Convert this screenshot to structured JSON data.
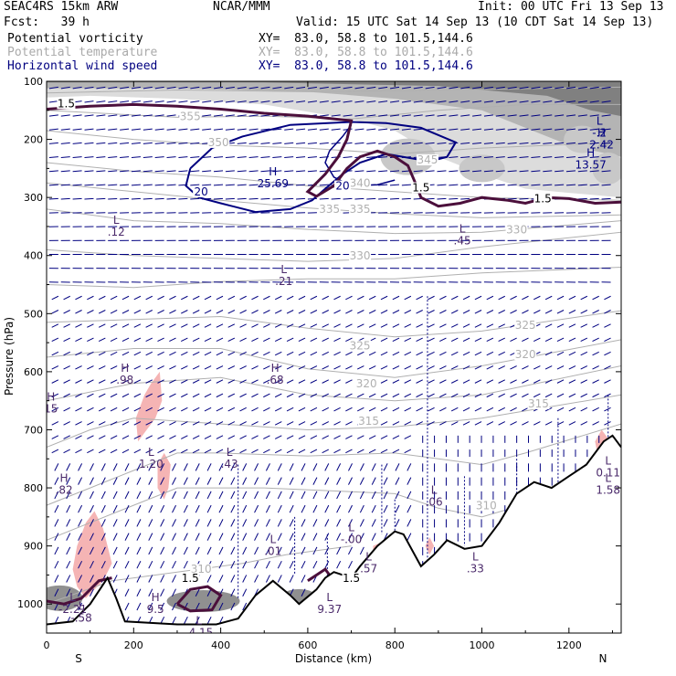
{
  "header": {
    "model": "SEAC4RS 15km ARW",
    "org": "NCAR/MMM",
    "init": "Init: 00 UTC Fri 13 Sep 13",
    "fcst": "Fcst:   39 h",
    "valid": "Valid: 15 UTC Sat 14 Sep 13 (10 CDT Sat 14 Sep 13)",
    "fields": [
      {
        "name": "Potential vorticity",
        "xy": "XY=  83.0, 58.8 to 101.5,144.6",
        "color": "#000000"
      },
      {
        "name": "Potential temperature",
        "xy": "XY=  83.0, 58.8 to 101.5,144.6",
        "color": "#aaaaaa"
      },
      {
        "name": "Horizontal wind speed",
        "xy": "XY=  83.0, 58.8 to 101.5,144.6",
        "color": "#000080"
      }
    ]
  },
  "chart_data": {
    "type": "cross-section",
    "ylabel": "Pressure (hPa)",
    "xlabel": "Distance (km)",
    "y_ticks": [
      100,
      200,
      300,
      400,
      500,
      600,
      700,
      800,
      900,
      1000
    ],
    "x_ticks": [
      0,
      200,
      400,
      600,
      800,
      1000,
      1200
    ],
    "ylim": [
      1050,
      100
    ],
    "xlim": [
      0,
      1320
    ],
    "endpoints": {
      "left": "S",
      "right": "N"
    },
    "theta_contours": [
      {
        "label": "355",
        "x": 330,
        "p": 165
      },
      {
        "label": "350",
        "x": 395,
        "p": 210
      },
      {
        "label": "345",
        "x": 875,
        "p": 240
      },
      {
        "label": "340",
        "x": 720,
        "p": 280
      },
      {
        "label": "335",
        "x": 650,
        "p": 325
      },
      {
        "label": "335",
        "x": 720,
        "p": 325
      },
      {
        "label": "330",
        "x": 1080,
        "p": 360
      },
      {
        "label": "330",
        "x": 720,
        "p": 405
      },
      {
        "label": "325",
        "x": 1100,
        "p": 525
      },
      {
        "label": "325",
        "x": 720,
        "p": 560
      },
      {
        "label": "320",
        "x": 1100,
        "p": 575
      },
      {
        "label": "320",
        "x": 735,
        "p": 625
      },
      {
        "label": "315",
        "x": 1130,
        "p": 660
      },
      {
        "label": "315",
        "x": 740,
        "p": 690
      },
      {
        "label": "310",
        "x": 1010,
        "p": 835
      },
      {
        "label": "310",
        "x": 355,
        "p": 945
      }
    ],
    "wind_contours": [
      {
        "label": "20",
        "x": 355,
        "p": 295
      },
      {
        "label": "20",
        "x": 680,
        "p": 285
      }
    ],
    "pv_contours": [
      {
        "label": "1.5",
        "x": 45,
        "p": 143
      },
      {
        "label": "1.5",
        "x": 860,
        "p": 288
      },
      {
        "label": "1.5",
        "x": 1140,
        "p": 307
      },
      {
        "label": "1.5",
        "x": 330,
        "p": 960
      },
      {
        "label": "1.5",
        "x": 700,
        "p": 960
      }
    ],
    "extrema": [
      {
        "type": "L",
        "value": "-.2",
        "x": 1270,
        "p": 175
      },
      {
        "type": "H",
        "value": "2.42",
        "x": 1275,
        "p": 195
      },
      {
        "type": "H",
        "value": "13.57",
        "x": 1250,
        "p": 230
      },
      {
        "type": "H",
        "value": "25.69",
        "x": 520,
        "p": 262
      },
      {
        "type": "L",
        "value": ".12",
        "x": 160,
        "p": 345
      },
      {
        "type": "L",
        "value": ".45",
        "x": 955,
        "p": 360
      },
      {
        "type": "L",
        "value": ".21",
        "x": 545,
        "p": 430
      },
      {
        "type": "H",
        "value": ".98",
        "x": 180,
        "p": 600
      },
      {
        "type": "H",
        "value": ".68",
        "x": 525,
        "p": 600
      },
      {
        "type": "H",
        "value": "15",
        "x": 10,
        "p": 650
      },
      {
        "type": "L",
        "value": "1.20",
        "x": 240,
        "p": 745
      },
      {
        "type": "L",
        "value": ".43",
        "x": 420,
        "p": 745
      },
      {
        "type": "L",
        "value": "0.11",
        "x": 1290,
        "p": 760
      },
      {
        "type": "H",
        "value": ".82",
        "x": 40,
        "p": 790
      },
      {
        "type": "L",
        "value": "1.58",
        "x": 1290,
        "p": 790
      },
      {
        "type": "L",
        "value": ".06",
        "x": 890,
        "p": 810
      },
      {
        "type": "L",
        "value": "-.00",
        "x": 700,
        "p": 875
      },
      {
        "type": "L",
        "value": ".01",
        "x": 520,
        "p": 895
      },
      {
        "type": "L",
        "value": ".57",
        "x": 740,
        "p": 925
      },
      {
        "type": "L",
        "value": ".33",
        "x": 985,
        "p": 925
      },
      {
        "type": "L",
        "value": "-2.21",
        "x": 60,
        "p": 995
      },
      {
        "type": "L",
        "value": "-.58",
        "x": 80,
        "p": 1010
      },
      {
        "type": "H",
        "value": "9.5",
        "x": 250,
        "p": 995
      },
      {
        "type": "L",
        "value": "9.37",
        "x": 650,
        "p": 995
      },
      {
        "type": "L",
        "value": "-4.15",
        "x": 350,
        "p": 1035
      }
    ],
    "terrain_p": [
      [
        0,
        1035
      ],
      [
        60,
        1030
      ],
      [
        100,
        1000
      ],
      [
        140,
        955
      ],
      [
        160,
        990
      ],
      [
        180,
        1030
      ],
      [
        300,
        1035
      ],
      [
        390,
        1035
      ],
      [
        440,
        1025
      ],
      [
        480,
        985
      ],
      [
        520,
        960
      ],
      [
        560,
        985
      ],
      [
        580,
        1000
      ],
      [
        620,
        975
      ],
      [
        640,
        955
      ],
      [
        660,
        945
      ],
      [
        700,
        955
      ],
      [
        720,
        935
      ],
      [
        760,
        900
      ],
      [
        800,
        875
      ],
      [
        820,
        880
      ],
      [
        860,
        935
      ],
      [
        890,
        915
      ],
      [
        920,
        890
      ],
      [
        960,
        905
      ],
      [
        1000,
        900
      ],
      [
        1040,
        860
      ],
      [
        1080,
        810
      ],
      [
        1120,
        790
      ],
      [
        1160,
        800
      ],
      [
        1200,
        780
      ],
      [
        1240,
        760
      ],
      [
        1260,
        740
      ],
      [
        1280,
        720
      ],
      [
        1300,
        710
      ],
      [
        1320,
        730
      ]
    ],
    "colors": {
      "wind_contour": "#000080",
      "pv_contour": "#4b0f3b",
      "theta": "#b0b0b0",
      "pv_shade_positive": "#808080",
      "pv_shade_negative": "#f5b4b4",
      "extrema_label": "#4b2a6b"
    }
  }
}
